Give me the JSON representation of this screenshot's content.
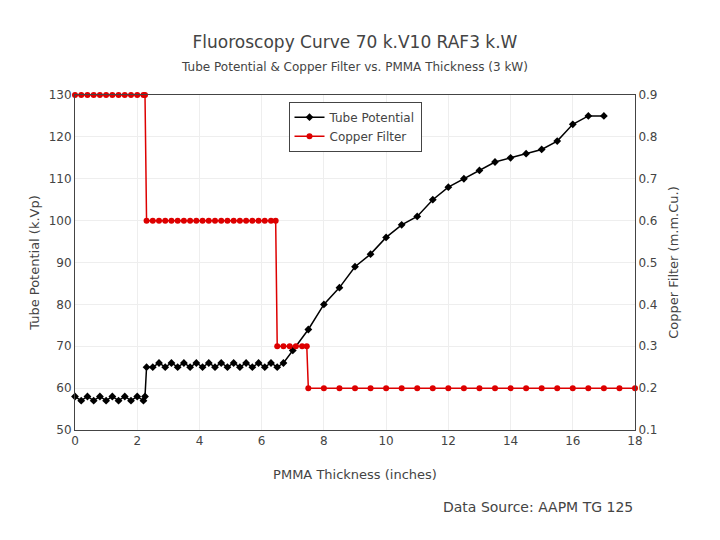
{
  "chart_data": {
    "type": "line",
    "title": "Fluoroscopy Curve 70 k.V10 RAF3 k.W",
    "subtitle": "Tube Potential & Copper Filter vs. PMMA Thickness (3 kW)",
    "xlabel": "PMMA Thickness (inches)",
    "ylabel": "Tube Potential (k.Vp)",
    "y2label": "Copper Filter (m.m.Cu.)",
    "annotations": [
      "Data Source: AAPM TG 125"
    ],
    "xlim": [
      0,
      18
    ],
    "xticks": [
      0,
      2,
      4,
      6,
      8,
      10,
      12,
      14,
      16,
      18
    ],
    "ylim": [
      50,
      130
    ],
    "yticks": [
      50,
      60,
      70,
      80,
      90,
      100,
      110,
      120,
      130
    ],
    "y2lim": [
      0.1,
      0.9
    ],
    "y2ticks": [
      0.1,
      0.2,
      0.3,
      0.4,
      0.5,
      0.6,
      0.7,
      0.8,
      0.9
    ],
    "grid": true,
    "legend": "upper center",
    "series": [
      {
        "name": "Tube Potential",
        "color": "#000000",
        "marker": "diamond",
        "line_style": "solid",
        "x": [
          0.0,
          0.2,
          0.4,
          0.6,
          0.8,
          1.0,
          1.2,
          1.4,
          1.6,
          1.8,
          2.0,
          2.2,
          2.25,
          2.3,
          2.5,
          2.7,
          2.9,
          3.1,
          3.3,
          3.5,
          3.7,
          3.9,
          4.1,
          4.3,
          4.5,
          4.7,
          4.9,
          5.1,
          5.3,
          5.5,
          5.7,
          5.9,
          6.1,
          6.3,
          6.5,
          6.7,
          7.0,
          7.5,
          8.0,
          8.5,
          9.0,
          9.5,
          10.0,
          10.5,
          11.0,
          11.5,
          12.0,
          12.5,
          13.0,
          13.5,
          14.0,
          14.5,
          15.0,
          15.5,
          16.0,
          16.5,
          17.0
        ],
        "values": [
          58,
          57,
          58,
          57,
          58,
          57,
          58,
          57,
          58,
          57,
          58,
          57,
          58,
          65,
          65,
          66,
          65,
          66,
          65,
          66,
          65,
          66,
          65,
          66,
          65,
          66,
          65,
          66,
          65,
          66,
          65,
          66,
          65,
          66,
          65,
          66,
          69,
          74,
          80,
          84,
          89,
          92,
          96,
          99,
          101,
          105,
          108,
          110,
          112,
          114,
          115,
          116,
          117,
          119,
          123,
          125,
          125
        ]
      },
      {
        "name": "Copper Filter",
        "color": "#dd0000",
        "marker": "circle",
        "line_style": "solid",
        "axis": "y2",
        "x": [
          0.0,
          0.2,
          0.4,
          0.6,
          0.8,
          1.0,
          1.2,
          1.4,
          1.6,
          1.8,
          2.0,
          2.2,
          2.25,
          2.3,
          2.5,
          2.7,
          2.9,
          3.1,
          3.3,
          3.5,
          3.7,
          3.9,
          4.1,
          4.3,
          4.5,
          4.7,
          4.9,
          5.1,
          5.3,
          5.5,
          5.7,
          5.9,
          6.1,
          6.3,
          6.45,
          6.5,
          6.7,
          6.9,
          7.1,
          7.3,
          7.45,
          7.5,
          8.0,
          8.5,
          9.0,
          9.5,
          10.0,
          10.5,
          11.0,
          11.5,
          12.0,
          12.5,
          13.0,
          13.5,
          14.0,
          14.5,
          15.0,
          15.5,
          16.0,
          16.5,
          17.0,
          17.5,
          18.0
        ],
        "values": [
          0.9,
          0.9,
          0.9,
          0.9,
          0.9,
          0.9,
          0.9,
          0.9,
          0.9,
          0.9,
          0.9,
          0.9,
          0.9,
          0.6,
          0.6,
          0.6,
          0.6,
          0.6,
          0.6,
          0.6,
          0.6,
          0.6,
          0.6,
          0.6,
          0.6,
          0.6,
          0.6,
          0.6,
          0.6,
          0.6,
          0.6,
          0.6,
          0.6,
          0.6,
          0.6,
          0.3,
          0.3,
          0.3,
          0.3,
          0.3,
          0.3,
          0.2,
          0.2,
          0.2,
          0.2,
          0.2,
          0.2,
          0.2,
          0.2,
          0.2,
          0.2,
          0.2,
          0.2,
          0.2,
          0.2,
          0.2,
          0.2,
          0.2,
          0.2,
          0.2,
          0.2,
          0.2,
          0.2
        ]
      }
    ]
  }
}
